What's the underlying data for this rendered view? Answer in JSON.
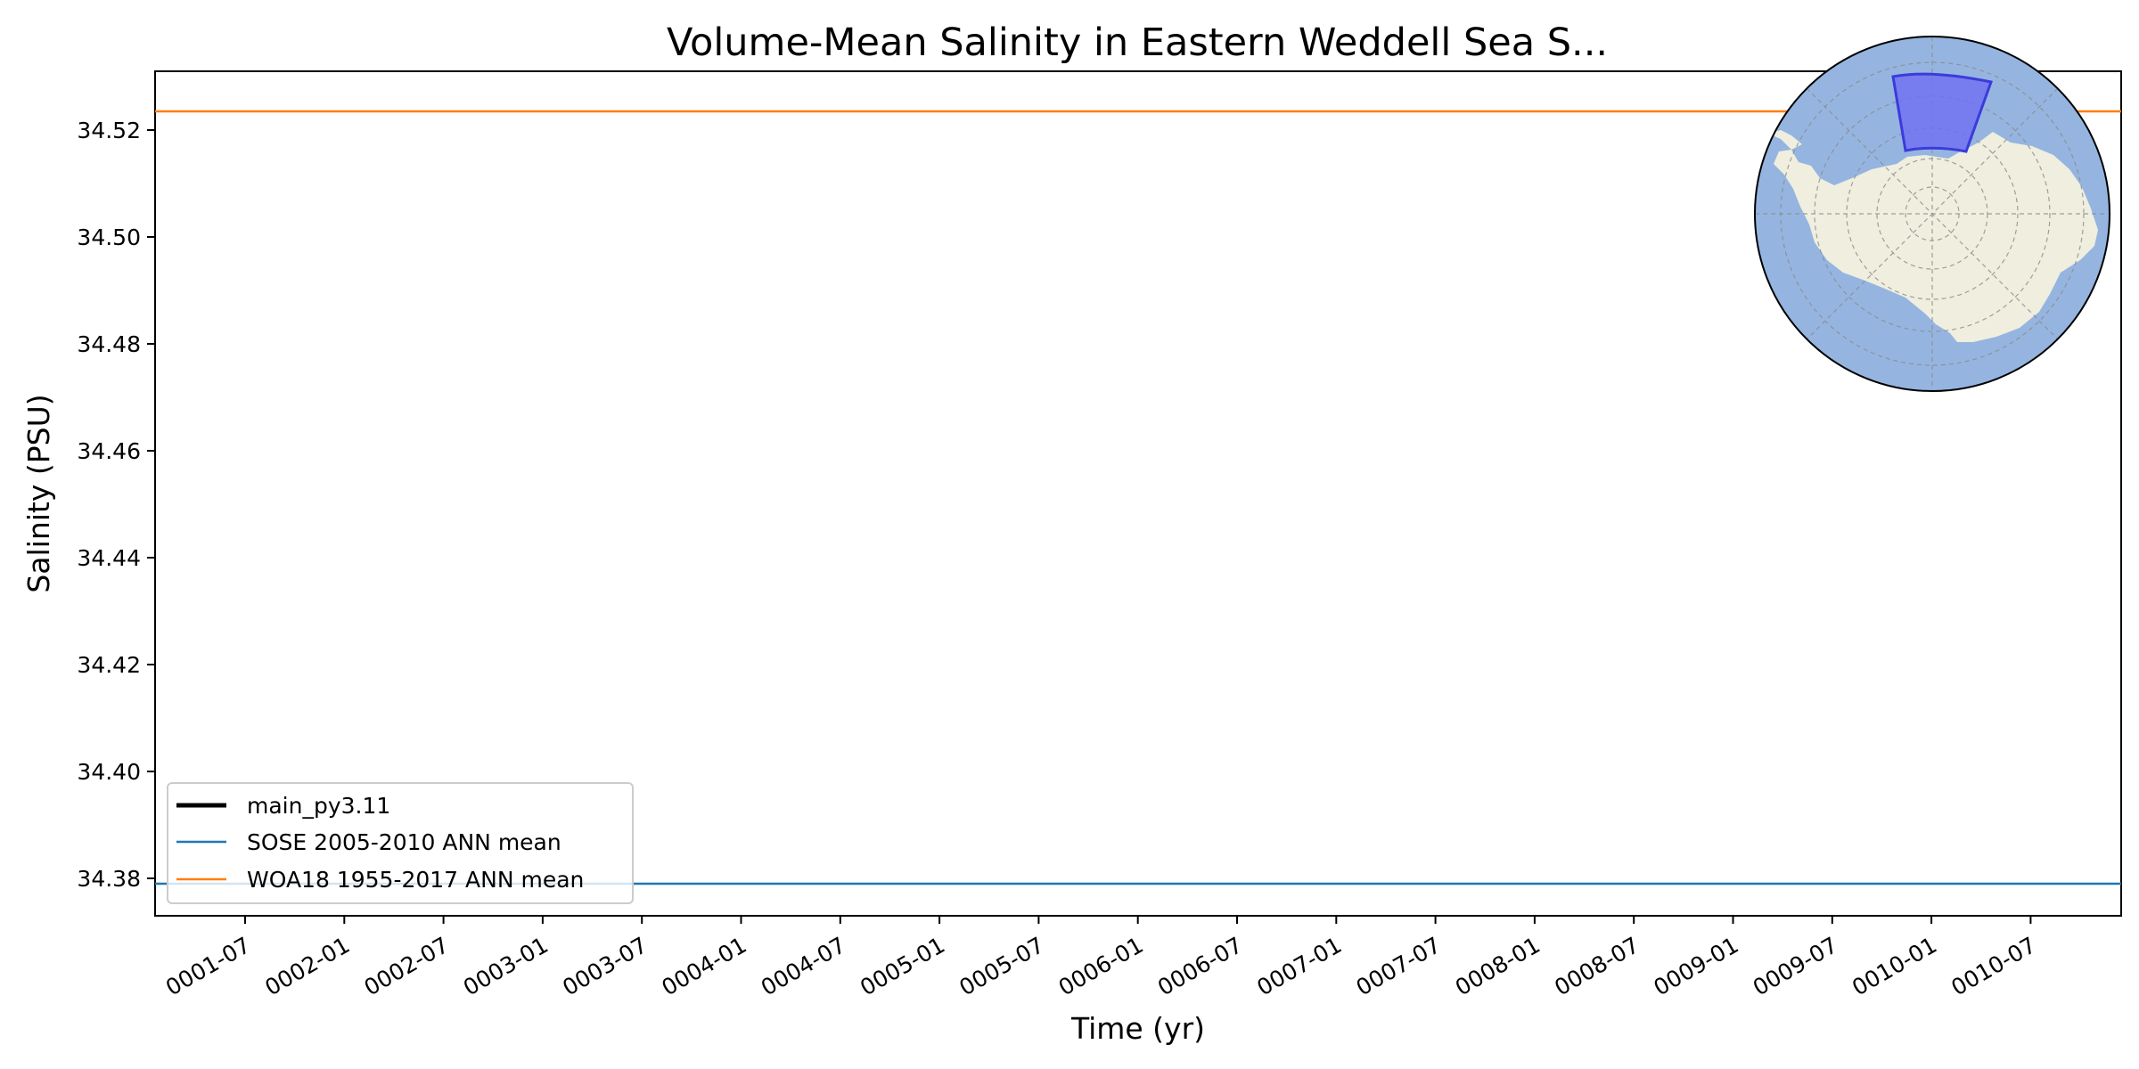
{
  "chart_data": {
    "type": "line",
    "title": "Volume-Mean Salinity in Eastern Weddell Sea S...",
    "xlabel": "Time (yr)",
    "ylabel": "Salinity (PSU)",
    "x_tick_labels": [
      "0001-07",
      "0002-01",
      "0002-07",
      "0003-01",
      "0003-07",
      "0004-01",
      "0004-07",
      "0005-01",
      "0005-07",
      "0006-01",
      "0006-07",
      "0007-01",
      "0007-07",
      "0008-01",
      "0008-07",
      "0009-01",
      "0009-07",
      "0010-01",
      "0010-07"
    ],
    "y_tick_values": [
      34.38,
      34.4,
      34.42,
      34.44,
      34.46,
      34.48,
      34.5,
      34.52
    ],
    "y_tick_labels": [
      "34.38",
      "34.40",
      "34.42",
      "34.44",
      "34.46",
      "34.48",
      "34.50",
      "34.52"
    ],
    "ylim": [
      34.373,
      34.531
    ],
    "grid": false,
    "legend_position": "lower-left",
    "series": [
      {
        "name": "main_py3.11",
        "color": "#000000",
        "values": []
      },
      {
        "name": "SOSE 2005-2010 ANN mean",
        "color": "#1f77b4",
        "value": 34.379
      },
      {
        "name": "WOA18 1955-2017 ANN mean",
        "color": "#ff7f0e",
        "value": 34.5235
      }
    ],
    "inset": {
      "type": "map",
      "projection": "south-polar-stereographic",
      "ocean_color": "#95b5e0",
      "land_color": "#efeedf",
      "region_color": "#6f6ff2",
      "region": "Eastern Weddell Sea"
    }
  }
}
